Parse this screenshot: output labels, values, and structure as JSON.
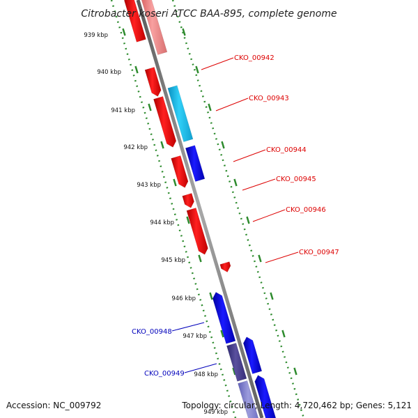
{
  "title": "Citrobacter koseri ATCC BAA-895, complete genome",
  "footer": {
    "accession": "Accession: NC_009792",
    "stats": "Topology: circular; Length: 4,720,462 bp; Genes: 5,121"
  },
  "colors": {
    "forward_gene": "#ff0000",
    "forward_gene_light": "#f08080",
    "reverse_gene": "#0000ee",
    "reverse_gene_dark": "#4a3f8f",
    "cyan_gene": "#1ec8ee",
    "backbone": "#8c8c8c",
    "scale_dots": "#2e8b2e",
    "label_forward": "#dd0000",
    "label_reverse": "#0000bb"
  },
  "scale": [
    "939 kbp",
    "940 kbp",
    "941 kbp",
    "942 kbp",
    "943 kbp",
    "944 kbp",
    "945 kbp",
    "946 kbp",
    "947 kbp",
    "948 kbp",
    "949 kbp"
  ],
  "gene_labels": [
    {
      "name": "CKO_00942",
      "strand": "forward"
    },
    {
      "name": "CKO_00943",
      "strand": "forward"
    },
    {
      "name": "CKO_00944",
      "strand": "forward"
    },
    {
      "name": "CKO_00945",
      "strand": "forward"
    },
    {
      "name": "CKO_00946",
      "strand": "forward"
    },
    {
      "name": "CKO_00947",
      "strand": "forward"
    },
    {
      "name": "CKO_00948",
      "strand": "reverse"
    },
    {
      "name": "CKO_00949",
      "strand": "reverse"
    }
  ]
}
